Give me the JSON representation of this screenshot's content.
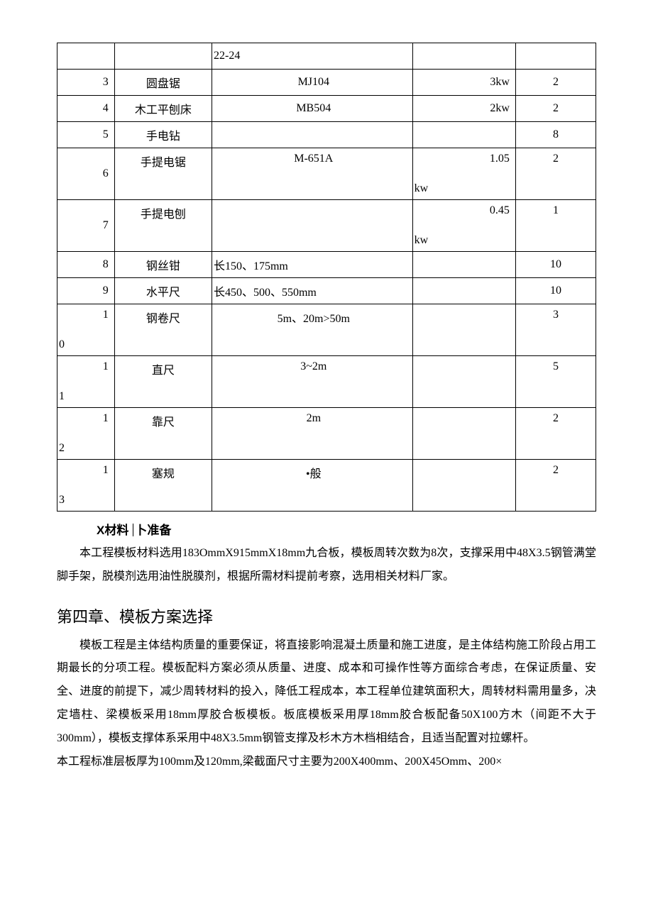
{
  "table": {
    "rows": [
      {
        "c1": "",
        "c2": "",
        "c3": "22-24",
        "c3align": "left",
        "c4": "",
        "c5": "",
        "tall": false,
        "kw": false,
        "numsplit": false
      },
      {
        "c1": "3",
        "c2": "圆盘锯",
        "c3": "MJ104",
        "c3align": "center",
        "c4": "3kw",
        "c5": "2",
        "tall": false,
        "kw": false,
        "numsplit": false
      },
      {
        "c1": "4",
        "c2": "木工平刨床",
        "c3": "MB504",
        "c3align": "center",
        "c4": "2kw",
        "c5": "2",
        "tall": false,
        "kw": false,
        "numsplit": false
      },
      {
        "c1": "5",
        "c2": "手电钻",
        "c3": "",
        "c3align": "center",
        "c4": "",
        "c5": "8",
        "tall": false,
        "kw": false,
        "numsplit": false
      },
      {
        "c1": "6",
        "c2": "手提电锯",
        "c3": "M-651A",
        "c3align": "center",
        "c4top": "1.05",
        "c4bot": "kw",
        "c5": "2",
        "tall": true,
        "kw": true,
        "numsplit": false
      },
      {
        "c1": "7",
        "c2": "手提电刨",
        "c3": "",
        "c3align": "center",
        "c4top": "0.45",
        "c4bot": "kw",
        "c5": "1",
        "tall": true,
        "kw": true,
        "numsplit": false
      },
      {
        "c1": "8",
        "c2": "钢丝钳",
        "c3": "长150、175mm",
        "c3align": "left",
        "c4": "",
        "c5": "10",
        "tall": false,
        "kw": false,
        "numsplit": false
      },
      {
        "c1": "9",
        "c2": "水平尺",
        "c3": "长450、500、550mm",
        "c3align": "left",
        "c4": "",
        "c5": "10",
        "tall": false,
        "kw": false,
        "numsplit": false
      },
      {
        "c1top": "1",
        "c1bot": "0",
        "c2": "钢卷尺",
        "c3": "5m、20m>50m",
        "c3align": "center",
        "c4": "",
        "c5": "3",
        "tall": true,
        "kw": false,
        "numsplit": true
      },
      {
        "c1top": "1",
        "c1bot": "1",
        "c2": "直尺",
        "c3": "3~2m",
        "c3align": "center",
        "c4": "",
        "c5": "5",
        "tall": true,
        "kw": false,
        "numsplit": true
      },
      {
        "c1top": "1",
        "c1bot": "2",
        "c2": "靠尺",
        "c3": "2m",
        "c3align": "center",
        "c4": "",
        "c5": "2",
        "tall": true,
        "kw": false,
        "numsplit": true
      },
      {
        "c1top": "1",
        "c1bot": "3",
        "c2": "塞规",
        "c3": "•般",
        "c3align": "center",
        "c4": "",
        "c5": "2",
        "tall": true,
        "kw": false,
        "numsplit": true
      }
    ]
  },
  "heading_materials_x": "X",
  "heading_materials_a": "材料",
  "heading_materials_b": "卜准备",
  "para_materials": "本工程模板材料选用183OmmX915mmX18mm九合板，模板周转次数为8次，支撑采用中48X3.5钢管满堂脚手架，脱模剂选用油性脱膜剂，根据所需材料提前考察，选用相关材料厂家。",
  "chapter4_title": "第四章、模板方案选择",
  "para_chapter4_1": "模板工程是主体结构质量的重要保证，将直接影响混凝土质量和施工进度，是主体结构施工阶段占用工期最长的分项工程。模板配料方案必须从质量、进度、成本和可操作性等方面综合考虑，在保证质量、安全、进度的前提下，减少周转材料的投入，降低工程成本，本工程单位建筑面积大，周转材料需用量多，决定墙柱、梁模板采用18mm厚胶合板模板。板底模板采用厚18mm胶合板配备50X100方木（间距不大于300mm），模板支撑体系采用中48X3.5mm钢管支撑及杉木方木档相结合，且适当配置对拉螺杆。",
  "para_chapter4_2": "本工程标准层板厚为100mm及120mm,梁截面尺寸主要为200X400mm、200X45Omm、200×"
}
